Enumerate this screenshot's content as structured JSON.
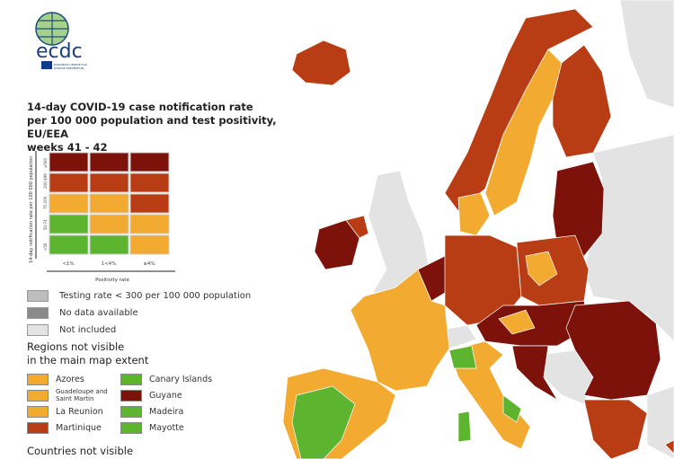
{
  "logo": {
    "text": "ecdc",
    "subtext": "EUROPEAN CENTRE FOR DISEASE PREVENTION AND CONTROL"
  },
  "title": [
    "14-day COVID-19 case notification rate",
    "per 100 000 population and test positivity, EU/EEA",
    "weeks 41 - 42"
  ],
  "matrix": {
    "y_axis_label": "14-day notification rate per 100 000 population",
    "x_axis_label": "Positivity rate",
    "rows": [
      "≥500",
      "200-499",
      "75-200",
      "50-74",
      "<50"
    ],
    "cols": [
      "<1%",
      "1<4%",
      "≥4%"
    ],
    "cells": [
      [
        "#7d120b",
        "#7d120b",
        "#7d120b"
      ],
      [
        "#b83c14",
        "#b83c14",
        "#b83c14"
      ],
      [
        "#f2aa30",
        "#f2aa30",
        "#b83c14"
      ],
      [
        "#5db52f",
        "#f2aa30",
        "#f2aa30"
      ],
      [
        "#5db52f",
        "#5db52f",
        "#f2aa30"
      ]
    ]
  },
  "legend": {
    "items": [
      {
        "label": "Testing rate < 300 per 100 000 population",
        "color": "#bdbdbd"
      },
      {
        "label": "No data available",
        "color": "#8a8a8a"
      },
      {
        "label": "Not included",
        "color": "#e3e3e3"
      }
    ],
    "regions_title": [
      "Regions not visible",
      "in the main map extent"
    ],
    "regions": [
      {
        "label": "Azores",
        "color": "#f2aa30"
      },
      {
        "label": "Canary Islands",
        "color": "#5db52f"
      },
      {
        "label": "Guadeloupe and Saint Martin",
        "color": "#f2aa30"
      },
      {
        "label": "Guyane",
        "color": "#7d120b"
      },
      {
        "label": "La Reunion",
        "color": "#f2aa30"
      },
      {
        "label": "Madeira",
        "color": "#5db52f"
      },
      {
        "label": "Martinique",
        "color": "#b83c14"
      },
      {
        "label": "Mayotte",
        "color": "#5db52f"
      }
    ],
    "countries_title": "Countries not visible"
  },
  "colors": {
    "dark_red": "#7d120b",
    "red": "#b83c14",
    "orange": "#f2aa30",
    "green": "#5db52f",
    "not_included": "#e3e3e3"
  }
}
